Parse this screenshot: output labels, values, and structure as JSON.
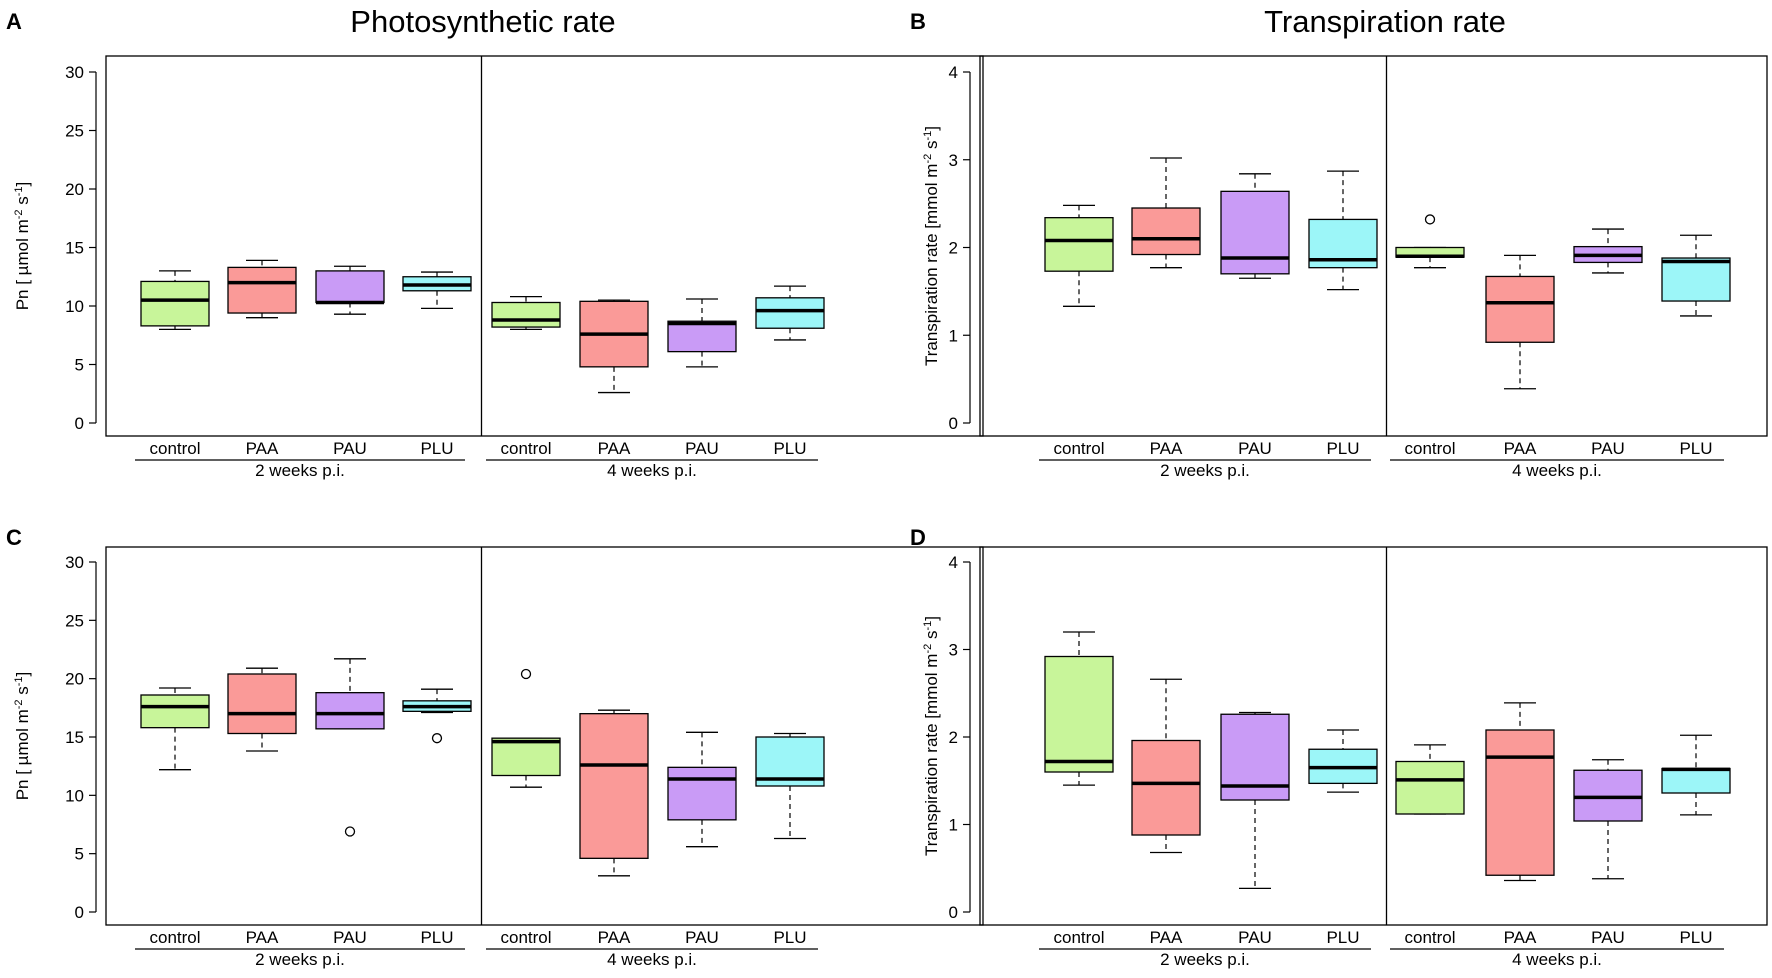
{
  "titles": [
    "Photosynthetic rate",
    "Transpiration rate"
  ],
  "panel_letters": [
    "A",
    "B",
    "C",
    "D"
  ],
  "chart_data": [
    {
      "panel": "A",
      "type": "boxplot",
      "title": "Photosynthetic rate",
      "ylabel": "Pn [ µmol m-2 s-1]",
      "ylim": [
        0,
        30
      ],
      "yticks": [
        0,
        5,
        10,
        15,
        20,
        25,
        30
      ],
      "groups": [
        {
          "label": "2 weeks p.i.",
          "boxes": [
            {
              "name": "control",
              "min": 8.0,
              "q1": 8.3,
              "median": 10.5,
              "q3": 12.1,
              "max": 13.0,
              "outliers": []
            },
            {
              "name": "PAA",
              "min": 9.0,
              "q1": 9.4,
              "median": 12.0,
              "q3": 13.3,
              "max": 13.9,
              "outliers": []
            },
            {
              "name": "PAU",
              "min": 9.3,
              "q1": 10.3,
              "median": 10.3,
              "q3": 13.0,
              "max": 13.4,
              "outliers": []
            },
            {
              "name": "PLU",
              "min": 9.8,
              "q1": 11.3,
              "median": 11.8,
              "q3": 12.5,
              "max": 12.9,
              "outliers": []
            }
          ]
        },
        {
          "label": "4 weeks p.i.",
          "boxes": [
            {
              "name": "control",
              "min": 8.0,
              "q1": 8.2,
              "median": 8.8,
              "q3": 10.3,
              "max": 10.8,
              "outliers": []
            },
            {
              "name": "PAA",
              "min": 2.6,
              "q1": 4.8,
              "median": 7.6,
              "q3": 10.4,
              "max": 10.5,
              "outliers": []
            },
            {
              "name": "PAU",
              "min": 4.8,
              "q1": 6.1,
              "median": 8.5,
              "q3": 8.7,
              "max": 10.6,
              "outliers": []
            },
            {
              "name": "PLU",
              "min": 7.1,
              "q1": 8.1,
              "median": 9.6,
              "q3": 10.7,
              "max": 11.7,
              "outliers": []
            }
          ]
        }
      ]
    },
    {
      "panel": "B",
      "type": "boxplot",
      "title": "Transpiration rate",
      "ylabel": "Transpiration rate [mmol m-2 s-1]",
      "ylim": [
        0,
        4
      ],
      "yticks": [
        0,
        1,
        2,
        3,
        4
      ],
      "groups": [
        {
          "label": "2 weeks p.i.",
          "boxes": [
            {
              "name": "control",
              "min": 1.33,
              "q1": 1.73,
              "median": 2.08,
              "q3": 2.34,
              "max": 2.48,
              "outliers": []
            },
            {
              "name": "PAA",
              "min": 1.77,
              "q1": 1.92,
              "median": 2.1,
              "q3": 2.45,
              "max": 3.02,
              "outliers": []
            },
            {
              "name": "PAU",
              "min": 1.65,
              "q1": 1.7,
              "median": 1.88,
              "q3": 2.64,
              "max": 2.84,
              "outliers": []
            },
            {
              "name": "PLU",
              "min": 1.52,
              "q1": 1.77,
              "median": 1.86,
              "q3": 2.32,
              "max": 2.87,
              "outliers": []
            }
          ]
        },
        {
          "label": "4 weeks p.i.",
          "boxes": [
            {
              "name": "control",
              "min": 1.77,
              "q1": 1.89,
              "median": 1.9,
              "q3": 2.0,
              "max": 2.0,
              "outliers": [
                2.32
              ]
            },
            {
              "name": "PAA",
              "min": 0.39,
              "q1": 0.92,
              "median": 1.37,
              "q3": 1.67,
              "max": 1.91,
              "outliers": []
            },
            {
              "name": "PAU",
              "min": 1.71,
              "q1": 1.83,
              "median": 1.91,
              "q3": 2.01,
              "max": 2.21,
              "outliers": []
            },
            {
              "name": "PLU",
              "min": 1.22,
              "q1": 1.39,
              "median": 1.84,
              "q3": 1.88,
              "max": 2.14,
              "outliers": []
            }
          ]
        }
      ]
    },
    {
      "panel": "C",
      "type": "boxplot",
      "title": "",
      "ylabel": "Pn [ µmol m-2 s-1]",
      "ylim": [
        0,
        30
      ],
      "yticks": [
        0,
        5,
        10,
        15,
        20,
        25,
        30
      ],
      "groups": [
        {
          "label": "2 weeks p.i.",
          "boxes": [
            {
              "name": "control",
              "min": 12.2,
              "q1": 15.8,
              "median": 17.6,
              "q3": 18.6,
              "max": 19.2,
              "outliers": []
            },
            {
              "name": "PAA",
              "min": 13.8,
              "q1": 15.3,
              "median": 17.0,
              "q3": 20.4,
              "max": 20.9,
              "outliers": []
            },
            {
              "name": "PAU",
              "min": 15.7,
              "q1": 15.7,
              "median": 17.0,
              "q3": 18.8,
              "max": 21.7,
              "outliers": [
                6.9
              ]
            },
            {
              "name": "PLU",
              "min": 17.1,
              "q1": 17.2,
              "median": 17.6,
              "q3": 18.1,
              "max": 19.1,
              "outliers": [
                14.9
              ]
            }
          ]
        },
        {
          "label": "4 weeks p.i.",
          "boxes": [
            {
              "name": "control",
              "min": 10.7,
              "q1": 11.7,
              "median": 14.6,
              "q3": 14.9,
              "max": 14.9,
              "outliers": [
                20.4
              ]
            },
            {
              "name": "PAA",
              "min": 3.1,
              "q1": 4.6,
              "median": 12.6,
              "q3": 17.0,
              "max": 17.3,
              "outliers": []
            },
            {
              "name": "PAU",
              "min": 5.6,
              "q1": 7.9,
              "median": 11.4,
              "q3": 12.4,
              "max": 15.4,
              "outliers": []
            },
            {
              "name": "PLU",
              "min": 6.3,
              "q1": 10.8,
              "median": 11.4,
              "q3": 15.0,
              "max": 15.3,
              "outliers": []
            }
          ]
        }
      ]
    },
    {
      "panel": "D",
      "type": "boxplot",
      "title": "",
      "ylabel": "Transpiration rate [mmol m-2 s-1]",
      "ylim": [
        0,
        4
      ],
      "yticks": [
        0,
        1,
        2,
        3,
        4
      ],
      "groups": [
        {
          "label": "2 weeks p.i.",
          "boxes": [
            {
              "name": "control",
              "min": 1.45,
              "q1": 1.6,
              "median": 1.72,
              "q3": 2.92,
              "max": 3.2,
              "outliers": []
            },
            {
              "name": "PAA",
              "min": 0.68,
              "q1": 0.88,
              "median": 1.47,
              "q3": 1.96,
              "max": 2.66,
              "outliers": []
            },
            {
              "name": "PAU",
              "min": 0.27,
              "q1": 1.28,
              "median": 1.44,
              "q3": 2.26,
              "max": 2.28,
              "outliers": []
            },
            {
              "name": "PLU",
              "min": 1.37,
              "q1": 1.47,
              "median": 1.65,
              "q3": 1.86,
              "max": 2.08,
              "outliers": []
            }
          ]
        },
        {
          "label": "4 weeks p.i.",
          "boxes": [
            {
              "name": "control",
              "min": 1.12,
              "q1": 1.12,
              "median": 1.51,
              "q3": 1.72,
              "max": 1.91,
              "outliers": []
            },
            {
              "name": "PAA",
              "min": 0.36,
              "q1": 0.42,
              "median": 1.77,
              "q3": 2.08,
              "max": 2.39,
              "outliers": []
            },
            {
              "name": "PAU",
              "min": 0.38,
              "q1": 1.04,
              "median": 1.31,
              "q3": 1.62,
              "max": 1.74,
              "outliers": []
            },
            {
              "name": "PLU",
              "min": 1.11,
              "q1": 1.36,
              "median": 1.63,
              "q3": 1.64,
              "max": 2.02,
              "outliers": []
            }
          ]
        }
      ]
    }
  ],
  "colors": {
    "control": "#c8f59a",
    "PAA": "#fa9a98",
    "PAU": "#c99bf6",
    "PLU": "#9cf6f8",
    "stroke": "#000000"
  }
}
